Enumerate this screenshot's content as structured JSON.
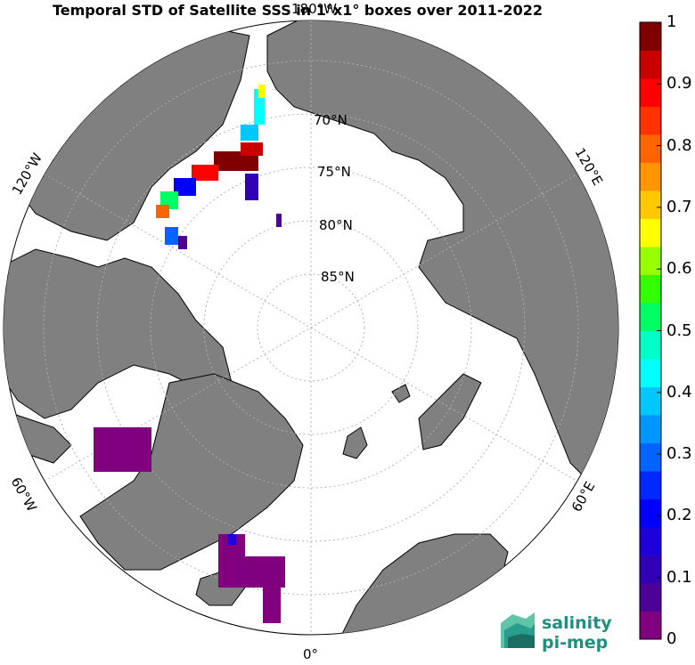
{
  "title": "Temporal STD of Satellite SSS in 1°x1° boxes over 2011-2022",
  "map": {
    "projection": "north-polar-stereographic",
    "center_latitude": 90,
    "min_latitude": 62
  },
  "lon_labels": [
    {
      "text": "180°W",
      "lon": 180
    },
    {
      "text": "120°W",
      "lon": -120
    },
    {
      "text": "60°W",
      "lon": -60
    },
    {
      "text": "0°",
      "lon": 0
    },
    {
      "text": "60°E",
      "lon": 60
    },
    {
      "text": "120°E",
      "lon": 120
    }
  ],
  "lat_labels": [
    "70°N",
    "75°N",
    "80°N",
    "85°N"
  ],
  "colorbar": {
    "ticks": [
      "0",
      "0.1",
      "0.2",
      "0.3",
      "0.4",
      "0.5",
      "0.6",
      "0.7",
      "0.8",
      "0.9",
      "1"
    ],
    "range": [
      0,
      1
    ],
    "colormap": "jet-discrete-20",
    "colors": [
      "#800080",
      "#4b0096",
      "#3200b4",
      "#1e00dc",
      "#0000ff",
      "#0028ff",
      "#0064ff",
      "#0096ff",
      "#00c8ff",
      "#00ffff",
      "#00ffc8",
      "#00ff64",
      "#32ff00",
      "#96ff00",
      "#ffff00",
      "#ffc800",
      "#ff9600",
      "#ff6400",
      "#ff3200",
      "#ff0000",
      "#c80000",
      "#800000"
    ]
  },
  "colors": {
    "land": "#808080",
    "ocean": "#ffffff",
    "coast": "#000000",
    "grid": "#b0b0b0",
    "logo": "#1f8f7e"
  },
  "logo": {
    "line1": "salinity",
    "line2": "pi-mep"
  }
}
